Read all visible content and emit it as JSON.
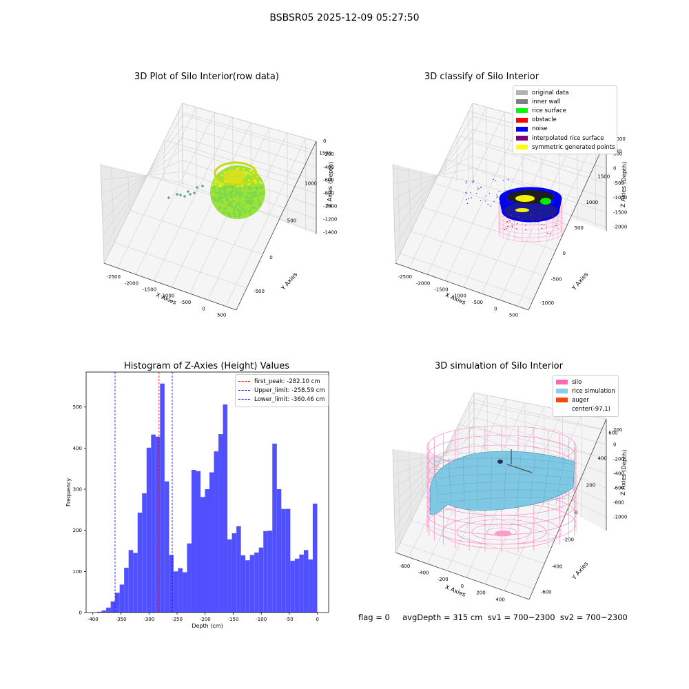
{
  "figure": {
    "suptitle": "BSBSR05 2025-12-09 05:27:50",
    "footer": "flag = 0     avgDepth = 315 cm  sv1 = 700~2300  sv2 = 700~2300"
  },
  "panels": {
    "raw": {
      "title": "3D Plot of Silo Interior(row data)",
      "xlabel": "X Axies",
      "ylabel": "Y Axies",
      "zlabel": "Z Axies (Depth)",
      "xticks": [
        "-2500",
        "-2000",
        "-1500",
        "-1000",
        "-500",
        "0",
        "500"
      ],
      "yticks": [
        "-500",
        "0",
        "500",
        "1000",
        "1500"
      ],
      "zticks": [
        "0",
        "-200",
        "-400",
        "-600",
        "-800",
        "-1000",
        "-1200",
        "-1400"
      ]
    },
    "classify": {
      "title": "3D classify of Silo Interior",
      "xlabel": "X Axies",
      "ylabel": "Y Axies",
      "zlabel": "Z Axies (Depth)",
      "xticks": [
        "-2500",
        "-2000",
        "-1500",
        "-1000",
        "-500",
        "0",
        "500"
      ],
      "yticks": [
        "-1000",
        "-500",
        "0",
        "500",
        "1000",
        "1500",
        "2000"
      ],
      "zticks": [
        "1000",
        "500",
        "0",
        "-500",
        "-1000",
        "-1500",
        "-2000"
      ],
      "legend": [
        {
          "label": "original data",
          "color": "#b3b3b3"
        },
        {
          "label": "inner wall",
          "color": "#808080"
        },
        {
          "label": "rice surface",
          "color": "#00ff00"
        },
        {
          "label": "obstacle",
          "color": "#ff0000"
        },
        {
          "label": "noise",
          "color": "#0000ff"
        },
        {
          "label": "interpolated rice surface",
          "color": "#800080"
        },
        {
          "label": "symmetric generated points",
          "color": "#ffff00"
        }
      ]
    },
    "simulation": {
      "title": "3D simulation of Silo Interior",
      "xlabel": "X Axies",
      "ylabel": "Y Axies",
      "zlabel": "Z Axies (Depth)",
      "xticks": [
        "-600",
        "-400",
        "-200",
        "0",
        "200",
        "400"
      ],
      "yticks": [
        "-600",
        "-400",
        "-200",
        "0",
        "200",
        "400",
        "600"
      ],
      "zticks": [
        "200",
        "0",
        "-200",
        "-400",
        "-600",
        "-800",
        "-1000"
      ],
      "legend": [
        {
          "label": "silo",
          "color": "#ff69b4"
        },
        {
          "label": "rice simulation",
          "color": "#87ceeb"
        },
        {
          "label": "auger",
          "color": "#ff4500"
        },
        {
          "label": "center(-97,1)",
          "color": ""
        }
      ]
    }
  },
  "chart_data": {
    "type": "bar",
    "title": "Histogram of Z-Axies (Height) Values",
    "xlabel": "Depth (cm)",
    "ylabel": "Frequency",
    "xlim": [
      -412,
      20
    ],
    "ylim": [
      0,
      585
    ],
    "xticks": [
      -400,
      -350,
      -300,
      -250,
      -200,
      -150,
      -100,
      -50,
      0
    ],
    "yticks": [
      0,
      100,
      200,
      300,
      400,
      500
    ],
    "bar_color": "#5050ff",
    "bins": [
      {
        "start": -392.3,
        "value": 2
      },
      {
        "start": -384.3,
        "value": 5
      },
      {
        "start": -376.3,
        "value": 12
      },
      {
        "start": -368.3,
        "value": 27
      },
      {
        "start": -360.3,
        "value": 48
      },
      {
        "start": -352.3,
        "value": 68
      },
      {
        "start": -344.3,
        "value": 109
      },
      {
        "start": -336.3,
        "value": 152
      },
      {
        "start": -328.3,
        "value": 145
      },
      {
        "start": -320.3,
        "value": 243
      },
      {
        "start": -312.3,
        "value": 290
      },
      {
        "start": -304.3,
        "value": 401
      },
      {
        "start": -296.3,
        "value": 433
      },
      {
        "start": -288.3,
        "value": 428
      },
      {
        "start": -280.3,
        "value": 557
      },
      {
        "start": -272.3,
        "value": 319
      },
      {
        "start": -264.3,
        "value": 140
      },
      {
        "start": -256.3,
        "value": 100
      },
      {
        "start": -248.3,
        "value": 108
      },
      {
        "start": -240.3,
        "value": 98
      },
      {
        "start": -232.3,
        "value": 168
      },
      {
        "start": -224.3,
        "value": 347
      },
      {
        "start": -216.3,
        "value": 344
      },
      {
        "start": -208.3,
        "value": 281
      },
      {
        "start": -200.3,
        "value": 300
      },
      {
        "start": -192.3,
        "value": 341
      },
      {
        "start": -184.3,
        "value": 392
      },
      {
        "start": -176.3,
        "value": 434
      },
      {
        "start": -168.3,
        "value": 506
      },
      {
        "start": -160.3,
        "value": 178
      },
      {
        "start": -152.3,
        "value": 193
      },
      {
        "start": -144.3,
        "value": 210
      },
      {
        "start": -136.3,
        "value": 139
      },
      {
        "start": -128.3,
        "value": 127
      },
      {
        "start": -120.3,
        "value": 140
      },
      {
        "start": -112.3,
        "value": 146
      },
      {
        "start": -104.3,
        "value": 158
      },
      {
        "start": -96.3,
        "value": 198
      },
      {
        "start": -88.3,
        "value": 199
      },
      {
        "start": -80.3,
        "value": 411
      },
      {
        "start": -72.3,
        "value": 300
      },
      {
        "start": -64.3,
        "value": 252
      },
      {
        "start": -56.3,
        "value": 252
      },
      {
        "start": -48.3,
        "value": 126
      },
      {
        "start": -40.3,
        "value": 131
      },
      {
        "start": -32.3,
        "value": 141
      },
      {
        "start": -24.3,
        "value": 152
      },
      {
        "start": -16.3,
        "value": 129
      },
      {
        "start": -8.3,
        "value": 265
      }
    ],
    "bin_width": 8.0,
    "vlines": [
      {
        "label": "first_peak: -282.10 cm",
        "x": -282.1,
        "color": "#ff0000"
      },
      {
        "label": "Upper_limit: -258.59 cm",
        "x": -258.59,
        "color": "#0000ff"
      },
      {
        "label": "Lower_limit: -360.46 cm",
        "x": -360.46,
        "color": "#0000ff"
      }
    ],
    "legend_position": "top-right"
  }
}
